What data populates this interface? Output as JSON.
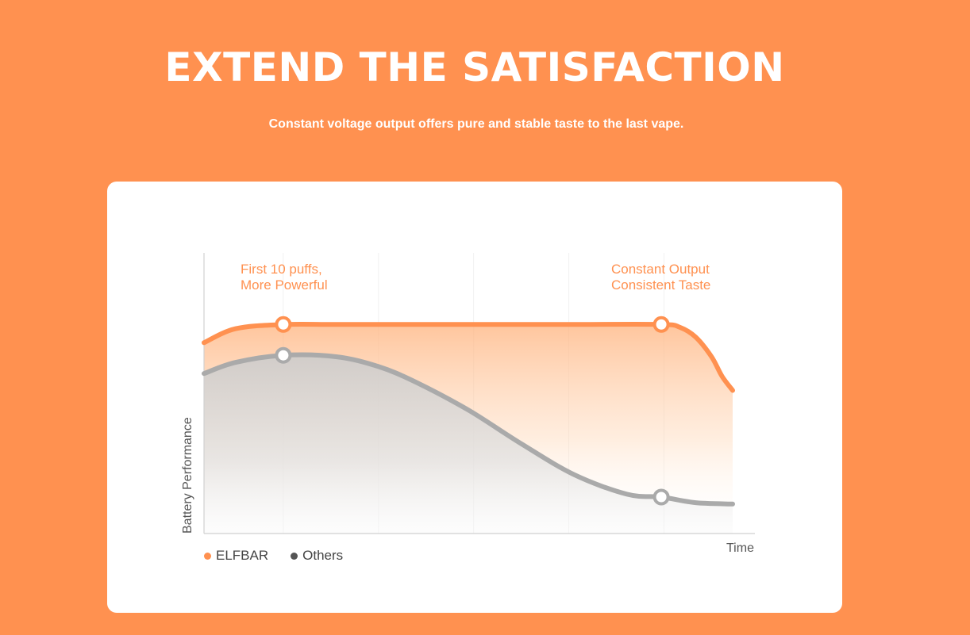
{
  "hero": {
    "title": "EXTEND THE SATISFACTION",
    "subtitle": "Constant voltage output offers pure and stable taste to the last vape."
  },
  "colors": {
    "background": "#ff9150",
    "elfbar": "#ff9150",
    "others": "#aaaaaa",
    "others_legend": "#555555"
  },
  "chart_data": {
    "type": "line",
    "xlabel": "Time",
    "ylabel": "Battery Performance",
    "xlim": [
      0,
      100
    ],
    "ylim": [
      0,
      100
    ],
    "grid": true,
    "legend_position": "bottom-left",
    "series": [
      {
        "name": "ELFBAR",
        "x": [
          0,
          6,
          15,
          25,
          40,
          55,
          70,
          86.5,
          90,
          93,
          96,
          98,
          100
        ],
        "y": [
          68,
          73,
          74.5,
          74.5,
          74.5,
          74.5,
          74.5,
          74.5,
          73.5,
          70,
          63,
          56,
          51
        ],
        "markers": [
          15,
          86.5
        ]
      },
      {
        "name": "Others",
        "x": [
          0,
          6,
          15,
          25,
          33,
          40,
          50,
          60,
          70,
          80,
          86.5,
          93,
          100
        ],
        "y": [
          57,
          61,
          63.5,
          63,
          59.5,
          54,
          44,
          32,
          21,
          14,
          13,
          11,
          10.5
        ],
        "markers": [
          15,
          86.5
        ]
      }
    ],
    "annotations": [
      {
        "lines": [
          "First 10 puffs,",
          "More Powerful"
        ],
        "anchor": "left"
      },
      {
        "lines": [
          "Constant Output",
          "Consistent Taste"
        ],
        "anchor": "right"
      }
    ]
  }
}
